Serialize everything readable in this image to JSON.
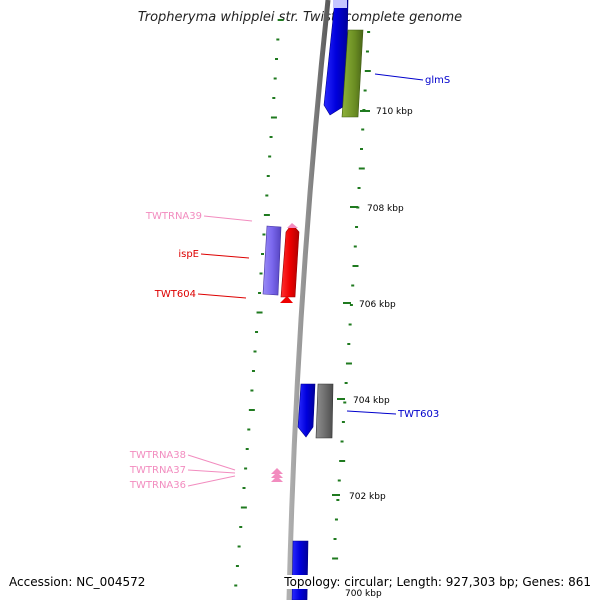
{
  "title": "Tropheryma whipplei str. Twist, complete genome",
  "footer": {
    "accession": "Accession: NC_004572",
    "topology": "Topology: circular; Length: 927,303 bp; Genes: 861"
  },
  "scale_labels": [
    "710 kbp",
    "708 kbp",
    "706 kbp",
    "704 kbp",
    "702 kbp",
    "700 kbp"
  ],
  "feature_labels": [
    {
      "text": "glmS",
      "color": "#0000cc"
    },
    {
      "text": "TWTRNA39",
      "color": "#f28cbf"
    },
    {
      "text": "ispE",
      "color": "#dd0000"
    },
    {
      "text": "TWT604",
      "color": "#dd0000"
    },
    {
      "text": "TWT603",
      "color": "#0000cc"
    },
    {
      "text": "TWTRNA38",
      "color": "#f28cbf"
    },
    {
      "text": "TWTRNA37",
      "color": "#f28cbf"
    },
    {
      "text": "TWTRNA36",
      "color": "#f28cbf"
    }
  ],
  "colors": {
    "backbone": "#8c8c8c",
    "gc_ticks": "#1f7a1f",
    "forward_cds": "#0000ee",
    "reverse_cds": "#6b8e23",
    "rna": "#f28cbf",
    "highlight_cds": "#ee0000",
    "purple_cds": "#7b68ee",
    "gray_cds": "#707070"
  }
}
